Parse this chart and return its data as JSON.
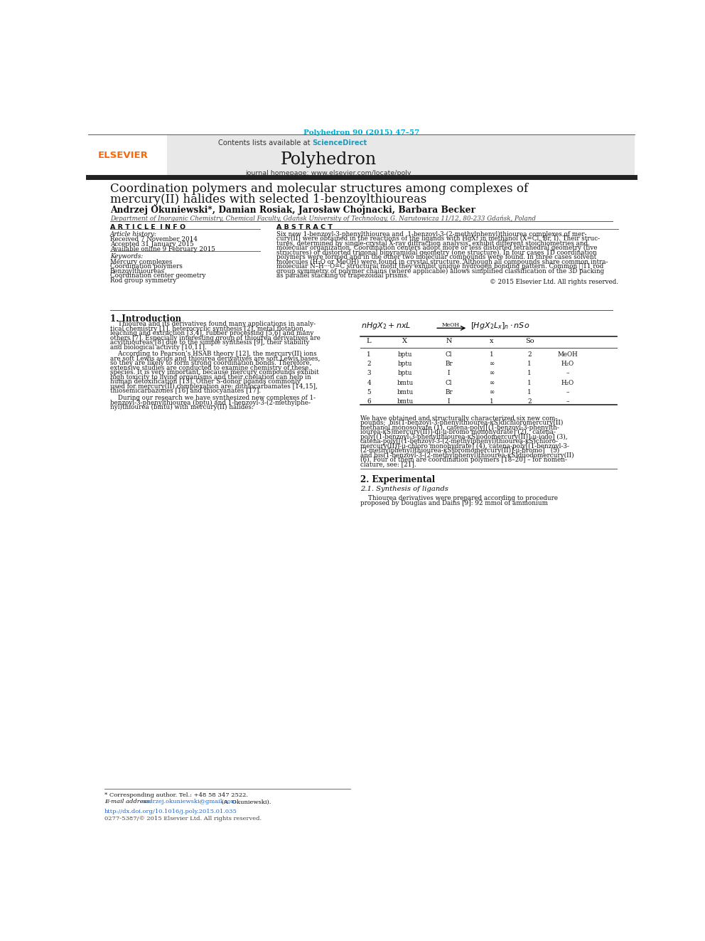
{
  "page_width": 9.92,
  "page_height": 13.23,
  "bg_color": "#ffffff",
  "top_citation": "Polyhedron 90 (2015) 47–57",
  "citation_color": "#00aacc",
  "journal_name": "Polyhedron",
  "journal_url": "journal homepage: www.elsevier.com/locate/poly",
  "contents_text": "Contents lists available at ",
  "sciencedirect_text": "ScienceDirect",
  "sciencedirect_color": "#2299bb",
  "header_bg": "#e8e8e8",
  "title_line1": "Coordination polymers and molecular structures among complexes of",
  "title_line2": "mercury(II) halides with selected 1-benzoylthioureas",
  "authors": "Andrzej Okuniewski*, Damian Rosiak, Jarosław Chojnacki, Barbara Becker",
  "affiliation": "Department of Inorganic Chemistry, Chemical Faculty, Gdańsk University of Technology, G. Narutowicza 11/12, 80-233 Gdańsk, Poland",
  "article_info_header": "A R T I C L E  I N F O",
  "abstract_header": "A B S T R A C T",
  "article_history_label": "Article history:",
  "received": "Received 7 November 2014",
  "accepted": "Accepted 31 January 2015",
  "available": "Available online 9 February 2015",
  "keywords_label": "Keywords:",
  "keywords": [
    "Mercury complexes",
    "Coordination polymers",
    "Benzoylthioureas",
    "Coordination center geometry",
    "Rod group symmetry"
  ],
  "abstract_lines": [
    "Six new 1-benzoyl-3-phenylthiourea and  1-benzoyl-3-(2-methylphenyl)thiourea complexes of mer-",
    "cury(II) were obtained in the reactions of the ligands with HgX₂ in methanol (X=Cl, Br, I). Their struc-",
    "tures, determined by single-crystal X-ray diffraction analysis, exhibit different stoichiometries and",
    "molecular organization. Coordination centers adopt more or less distorted tetrahedral geometry (five",
    "structures) or distorted trigonal bipyramidal geometry (one structure). In four cases 1D coordination",
    "polymers were formed and in the other two molecular compounds were found. In three cases solvent",
    "molecules (H₂O or MeOH) were found in crystal structure. Although all compounds share common intra-",
    "molecular N–H···O=C structural motif they exhibit unique hydrogen bonding pattern. Common ℬ11 rod",
    "group symmetry of polymer chains (where applicable) allows simplified classification of the 3D packing",
    "as parallel stacking of trapezoidal prisms."
  ],
  "copyright": "© 2015 Elsevier Ltd. All rights reserved.",
  "thick_bar_color": "#222222",
  "section1_title": "1. Introduction",
  "intro1_lines": [
    "    Thiourea and its derivatives found many applications in analy-",
    "tical chemistry [1], heterocyclic synthesis [2], metal flotation,",
    "leaching and extraction [3,4], rubber processing [5,6] and many",
    "others [7]. Especially interesting group of thiourea derivatives are",
    "acylthioureas [8] due to the simple synthesis [9], their stability",
    "and biological activity [10,11]."
  ],
  "intro2_lines": [
    "    According to Pearson’s HSAB theory [12], the mercury(II) ions",
    "are soft Lewis acids and thiourea derivatives are soft Lewis bases,",
    "so they are likely to form strong coordination bonds. Therefore,",
    "extensive studies are conducted to examine chemistry of these",
    "species. It is very important, because mercury compounds exhibit",
    "high toxicity to living organisms and their chelation can help in",
    "human detoxification [13]. Other S-donor ligands commonly",
    "used for mercury(II) complexation are: dithiocarbamates [14,15],",
    "thiosemicarbazones [16] and thiocyanates [17]."
  ],
  "intro3_lines": [
    "    During our research we have synthesized new complexes of 1-",
    "benzoyl-3-phenylthiourea (bptu) and 1-benzoyl-3-(2-methylphe-",
    "nyl)thiourea (bmtu) with mercury(II) halides:"
  ],
  "table_headers": [
    "",
    "L",
    "X",
    "N",
    "x",
    "So"
  ],
  "table_rows": [
    [
      "1",
      "bptu",
      "Cl",
      "1",
      "2",
      "MeOH"
    ],
    [
      "2",
      "bptu",
      "Br",
      "∞",
      "1",
      "H₂O"
    ],
    [
      "3",
      "bptu",
      "I",
      "∞",
      "1",
      "–"
    ],
    [
      "4",
      "bmtu",
      "Cl",
      "∞",
      "1",
      "H₂O"
    ],
    [
      "5",
      "bmtu",
      "Br",
      "∞",
      "1",
      "–"
    ],
    [
      "6",
      "bmtu",
      "I",
      "1",
      "2",
      "–"
    ]
  ],
  "right_para_lines": [
    "We have obtained and structurally characterized six new com-",
    "pounds;  bis(1-benzoyl-3-phenylthiourea-κS)dichloromercury(II)",
    "methanol monosolvate (1), catena-poly[[(1-benzoyl-3-phenylth-",
    "iourea-κS)mercury(II)]-di-μ-bromo monohydrate] (2),  catena-",
    "poly[(1-benzoyl-3-phenylthiourea-κS)iodomercury(II)]-μ-iodo] (3),",
    "catena-poly[[(1-benzoyl-3-(2-methylphenyl)thiourea-κS)chloro-",
    "mercury(II)]-μ-chloro monohydrate] (4), catena-poly[(1-benzoyl-3-",
    "(2-methylphenyl)thiourea-κS)bromomercury(II)]-μ-bromo]   (5)",
    "and bis(1-benzoyl-3-(2-methylphenyl)thiourea-κS)diiodomercury(II)",
    "(6). Four of them are coordination polymers [18–20] – for nomen-",
    "clature, see: [21]."
  ],
  "section2_title": "2. Experimental",
  "section21_title": "2.1. Synthesis of ligands",
  "synth_lines": [
    "    Thiourea derivatives were prepared according to procedure",
    "proposed by Douglas and Dains [9]: 92 mmol of ammonium"
  ],
  "footnote_star": "* Corresponding author. Tel.: +48 58 347 2522.",
  "footnote_email_label": "E-mail address:",
  "footnote_email": "andrzej.okuniewski@gmail.com",
  "footnote_email_suffix": " (A. Okuniewski).",
  "doi_text": "http://dx.doi.org/10.1016/j.poly.2015.01.035",
  "issn_text": "0277-5387/© 2015 Elsevier Ltd. All rights reserved.",
  "elsevier_color": "#ff6600",
  "link_color": "#2266cc"
}
